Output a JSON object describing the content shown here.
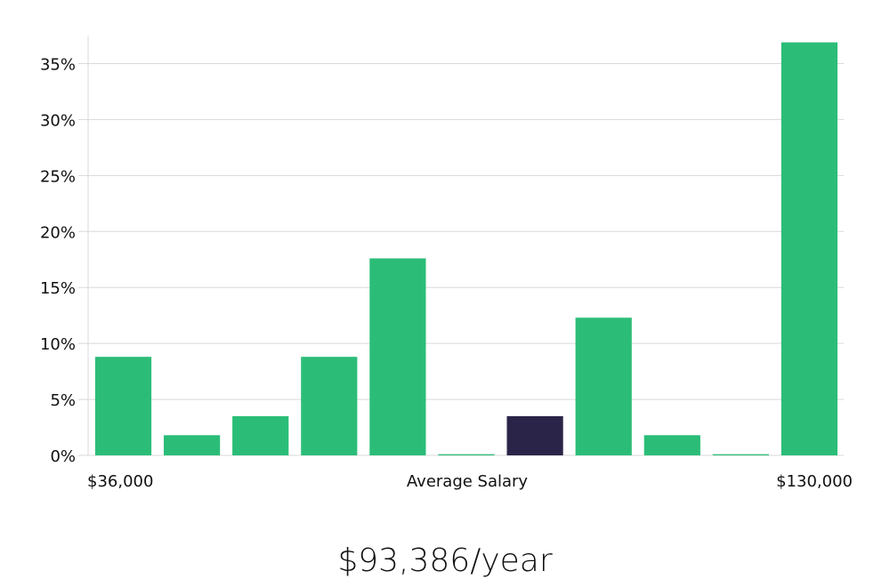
{
  "chart_data": {
    "type": "bar",
    "categories": [
      "1",
      "2",
      "3",
      "4",
      "5",
      "6",
      "7",
      "8",
      "9",
      "10",
      "11"
    ],
    "values": [
      8.8,
      1.8,
      3.5,
      8.8,
      17.6,
      0.1,
      3.5,
      12.3,
      1.8,
      0.1,
      36.9
    ],
    "highlight_index": 6,
    "colors": {
      "bar": "#2bbd78",
      "highlight": "#2a2548",
      "grid": "#d9d9d9",
      "axis": "#d9d9d9"
    },
    "ylim": [
      0,
      37.5
    ],
    "yticks": [
      0,
      5,
      10,
      15,
      20,
      25,
      30,
      35
    ],
    "ytick_labels": [
      "0%",
      "5%",
      "10%",
      "15%",
      "20%",
      "25%",
      "30%",
      "35%"
    ],
    "x_labels": {
      "left": "$36,000",
      "center": "Average Salary",
      "right": "$130,000"
    },
    "grid": true
  },
  "salary_display": "$93,386/year"
}
